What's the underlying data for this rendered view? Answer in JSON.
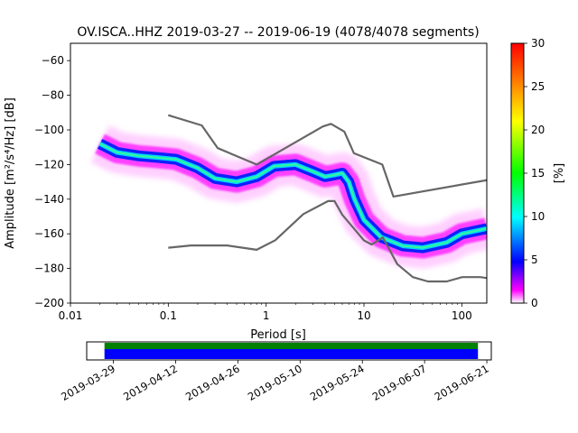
{
  "chart_data": [
    {
      "type": "heatmap",
      "title": "OV.ISCA..HHZ   2019-03-27 -- 2019-06-19  (4078/4078 segments)",
      "xlabel": "Period [s]",
      "ylabel": "Amplitude [m²/s⁴/Hz] [dB]",
      "x_scale": "log",
      "xlim": [
        0.01,
        180
      ],
      "ylim": [
        -200,
        -50
      ],
      "xticks": [
        {
          "value": 0.01,
          "label": "0.01"
        },
        {
          "value": 0.1,
          "label": "0.1"
        },
        {
          "value": 1,
          "label": "1"
        },
        {
          "value": 10,
          "label": "10"
        },
        {
          "value": 100,
          "label": "100"
        }
      ],
      "yticks": [
        -200,
        -180,
        -160,
        -140,
        -120,
        -100,
        -80,
        -60
      ],
      "colorbar": {
        "label": "[%]",
        "range": [
          0,
          30
        ],
        "ticks": [
          0,
          5,
          10,
          15,
          20,
          25,
          30
        ],
        "colormap": [
          "#ffffff",
          "#ff00ff",
          "#0000ff",
          "#00ffff",
          "#00ff00",
          "#ffff00",
          "#ff0000"
        ]
      },
      "psd_mode": {
        "x": [
          0.02,
          0.03,
          0.05,
          0.08,
          0.12,
          0.2,
          0.3,
          0.5,
          0.8,
          1.2,
          2,
          3,
          4,
          5,
          6,
          7,
          8,
          10,
          15,
          25,
          40,
          70,
          100,
          180
        ],
        "y": [
          -108,
          -113,
          -115,
          -116,
          -117,
          -122,
          -128,
          -130,
          -127,
          -121,
          -120,
          -124,
          -127,
          -126,
          -125,
          -130,
          -140,
          -152,
          -162,
          -167,
          -168,
          -165,
          -160,
          -157
        ]
      },
      "noise_models": [
        {
          "name": "high",
          "x": [
            0.1,
            0.22,
            0.32,
            0.8,
            3.8,
            4.6,
            6.3,
            7.9,
            15.4,
            20,
            180
          ],
          "y": [
            -91.5,
            -97.4,
            -110.5,
            -120,
            -98,
            -96.5,
            -101,
            -113.5,
            -120,
            -138.5,
            -129
          ]
        },
        {
          "name": "low",
          "x": [
            0.1,
            0.17,
            0.4,
            0.8,
            1.24,
            2.4,
            4.3,
            5,
            6,
            10,
            12,
            15.6,
            21.9,
            31.6,
            45,
            70,
            101,
            154,
            180
          ],
          "y": [
            -168,
            -166.7,
            -166.7,
            -169.2,
            -163.7,
            -148.6,
            -141.1,
            -141.1,
            -149,
            -163.8,
            -166.2,
            -162.1,
            -177.5,
            -185,
            -187.5,
            -187.5,
            -185,
            -185,
            -185.5
          ]
        }
      ],
      "line_color": "#666666"
    },
    {
      "type": "timeline",
      "tick_labels": [
        "2019-03-29",
        "2019-04-12",
        "2019-04-26",
        "2019-05-10",
        "2019-05-24",
        "2019-06-07",
        "2019-06-21"
      ],
      "span": [
        "2019-03-23",
        "2019-06-22"
      ],
      "data_span": [
        "2019-03-27",
        "2019-06-19"
      ],
      "bar_colors": {
        "coverage": "#0000ff",
        "available": "#008000"
      }
    }
  ]
}
